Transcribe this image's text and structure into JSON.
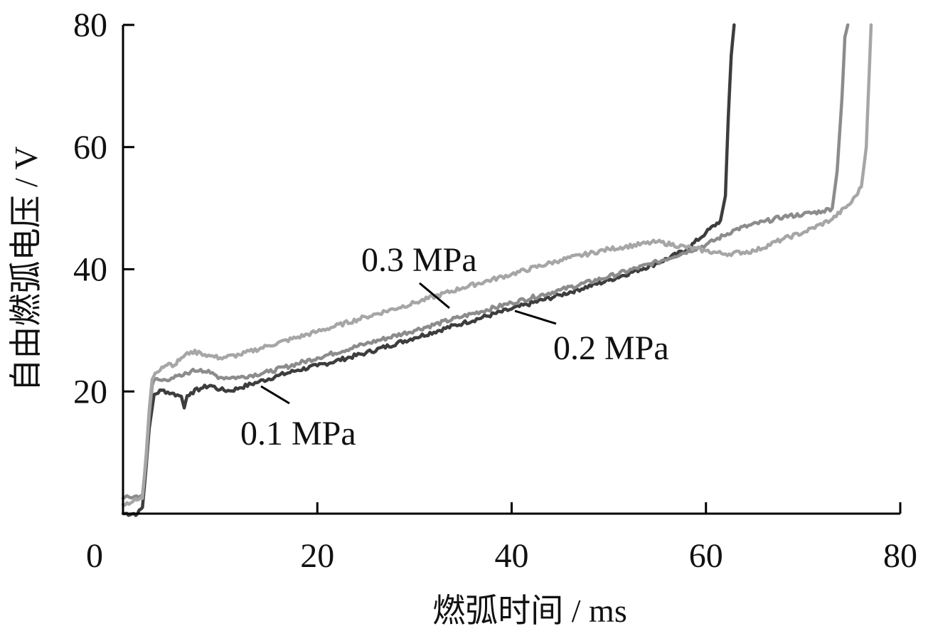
{
  "chart_data": {
    "type": "line",
    "xlabel": "燃弧时间 / ms",
    "ylabel": "自由燃弧电压 / V",
    "xlim": [
      0,
      80
    ],
    "ylim": [
      0,
      80
    ],
    "x_ticks": [
      "0",
      "20",
      "40",
      "60",
      "80"
    ],
    "y_ticks": [
      "20",
      "40",
      "60",
      "80"
    ],
    "grid": false,
    "legend": "inline labels with leader lines",
    "series": [
      {
        "name": "0.1 MPa",
        "color": "#3d3d3d",
        "x": [
          0,
          1.5,
          2.0,
          2.4,
          2.7,
          3.2,
          4.0,
          5.0,
          6.0,
          6.3,
          6.6,
          7.0,
          8.0,
          9.0,
          10.0,
          11.0,
          12.0,
          14.0,
          16.0,
          18.0,
          20.0,
          25.0,
          30.0,
          35.0,
          40.0,
          45.0,
          50.0,
          55.0,
          58.0,
          60.0,
          61.5,
          62.0,
          62.3,
          62.6,
          62.9
        ],
        "y": [
          0,
          0,
          1,
          8,
          14,
          19.5,
          20.2,
          19.7,
          19.2,
          17.3,
          19.3,
          19.8,
          20.5,
          21.0,
          20.3,
          20.1,
          20.6,
          21.6,
          22.6,
          23.5,
          24.2,
          26.3,
          28.8,
          31.2,
          33.5,
          35.8,
          38.2,
          41.0,
          43.2,
          46.0,
          48.0,
          52.0,
          65.0,
          75.0,
          80.0
        ]
      },
      {
        "name": "0.2 MPa",
        "color": "#8c8c8c",
        "x": [
          0,
          2.0,
          2.4,
          2.7,
          3.0,
          3.3,
          4.0,
          5.0,
          6.0,
          7.0,
          8.0,
          9.0,
          10.0,
          12.0,
          15.0,
          20.0,
          25.0,
          30.0,
          35.0,
          40.0,
          45.0,
          50.0,
          55.0,
          60.0,
          63.0,
          66.0,
          68.0,
          70.0,
          72.0,
          73.0,
          73.5,
          74.0,
          74.3,
          74.6
        ],
        "y": [
          2.5,
          3.0,
          9.0,
          16.0,
          21.0,
          22.0,
          21.8,
          22.2,
          22.5,
          23.3,
          23.6,
          23.0,
          22.3,
          22.3,
          23.2,
          25.5,
          27.8,
          30.0,
          32.3,
          34.5,
          36.6,
          38.8,
          41.2,
          44.0,
          46.5,
          47.8,
          48.6,
          49.0,
          49.5,
          50.0,
          56.0,
          68.0,
          78.0,
          80.0
        ]
      },
      {
        "name": "0.3 MPa",
        "color": "#a6a6a6",
        "x": [
          0,
          2.0,
          2.4,
          2.7,
          3.0,
          3.3,
          4.0,
          4.7,
          5.3,
          6.0,
          7.0,
          8.0,
          9.0,
          10.0,
          12.0,
          15.0,
          20.0,
          25.0,
          30.0,
          35.0,
          40.0,
          45.0,
          50.0,
          55.0,
          60.0,
          62.0,
          65.0,
          68.0,
          70.0,
          73.0,
          75.0,
          76.0,
          76.5,
          76.8,
          77.0
        ],
        "y": [
          1.5,
          2.5,
          10.0,
          17.0,
          22.0,
          23.0,
          24.0,
          24.6,
          24.3,
          25.5,
          26.5,
          26.3,
          25.8,
          25.5,
          26.0,
          27.5,
          29.8,
          32.2,
          34.5,
          37.0,
          39.2,
          41.5,
          43.3,
          44.5,
          43.0,
          42.5,
          43.0,
          45.0,
          46.0,
          48.2,
          51.0,
          53.5,
          60.0,
          72.0,
          80.0
        ]
      }
    ]
  }
}
